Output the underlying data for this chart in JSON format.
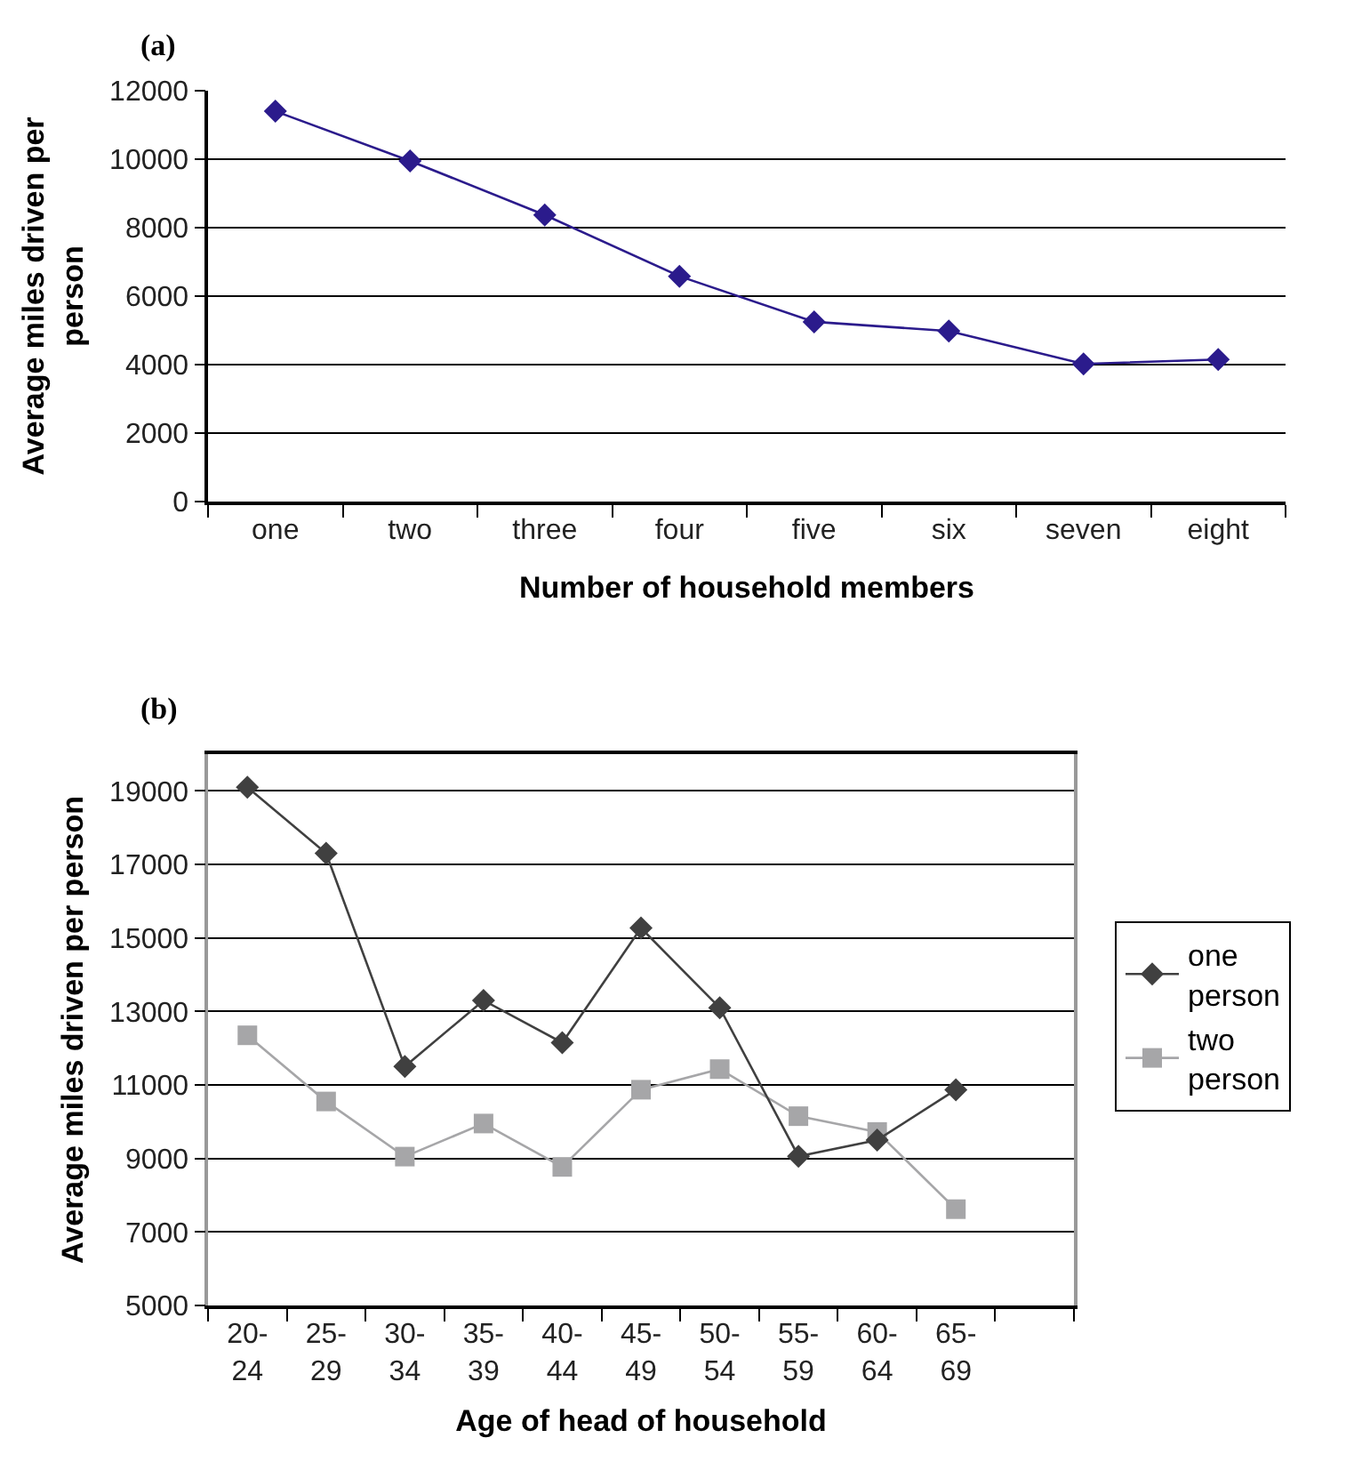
{
  "chart_data": [
    {
      "type": "line",
      "title": "(a)",
      "xlabel": "Number of household members",
      "ylabel": "Average miles driven per person",
      "categories": [
        "one",
        "two",
        "three",
        "four",
        "five",
        "six",
        "seven",
        "eight"
      ],
      "series": [
        {
          "color": "#2b1b8c",
          "marker": "diamond",
          "values": [
            11400,
            9950,
            8370,
            6580,
            5250,
            4980,
            4020,
            4150
          ]
        }
      ],
      "ylim": [
        0,
        12000
      ],
      "yticks": [
        0,
        2000,
        4000,
        6000,
        8000,
        10000,
        12000
      ],
      "grid": "y",
      "legend": false
    },
    {
      "type": "line",
      "title": "(b)",
      "xlabel": "Age of head of household",
      "ylabel": "Average miles driven per person",
      "categories": [
        "20-24",
        "25-29",
        "30-34",
        "35-39",
        "40-44",
        "45-49",
        "50-54",
        "55-59",
        "60-64",
        "65-69",
        null
      ],
      "series": [
        {
          "name": "one person",
          "color": "#404040",
          "marker": "diamond",
          "values": [
            19100,
            17300,
            11500,
            13300,
            12150,
            15270,
            13100,
            9060,
            9500,
            10870,
            null
          ]
        },
        {
          "name": "two person",
          "color": "#a6a6a8",
          "marker": "square",
          "values": [
            12350,
            10550,
            9050,
            9950,
            8770,
            10870,
            11430,
            10150,
            9720,
            7620,
            null
          ]
        }
      ],
      "ylim": [
        5000,
        20000
      ],
      "yticks": [
        5000,
        7000,
        9000,
        11000,
        13000,
        15000,
        17000,
        19000
      ],
      "grid": "y",
      "legend": "right"
    }
  ]
}
